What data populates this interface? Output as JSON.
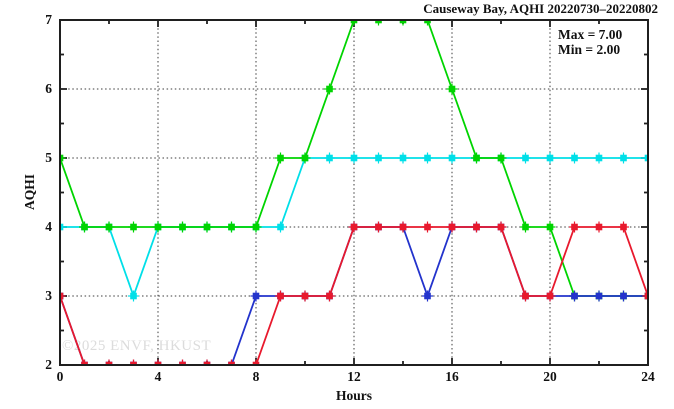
{
  "figure": {
    "watermark": "©2025 ENVF, HKUST"
  },
  "chart_data": {
    "type": "line",
    "title": "Causeway Bay, AQHI 20220730–20220802",
    "xlabel": "Hours",
    "ylabel": "AQHI",
    "xlim": [
      0,
      24
    ],
    "ylim": [
      2,
      7
    ],
    "grid": true,
    "legend_position": "none",
    "annotation_position": "top-right",
    "annotations": {
      "max": "Max = 7.00",
      "min": "Min = 2.00"
    },
    "stats": {
      "max": 7.0,
      "min": 2.0
    },
    "x_gridlines": [
      4,
      8,
      12,
      16,
      20
    ],
    "y_gridlines": [
      3,
      4,
      5,
      6
    ],
    "x_major_ticks": [
      0,
      4,
      8,
      12,
      16,
      20,
      24
    ],
    "x_minor_ticks": [
      2,
      6,
      10,
      14,
      18,
      22
    ],
    "y_major_ticks": [
      2,
      3,
      4,
      5,
      6,
      7
    ],
    "y_minor_ticks": [
      2.5,
      3.5,
      4.5,
      5.5,
      6.5
    ],
    "x": [
      0,
      1,
      2,
      3,
      4,
      5,
      6,
      7,
      8,
      9,
      10,
      11,
      12,
      13,
      14,
      15,
      16,
      17,
      18,
      19,
      20,
      21,
      22,
      23,
      24
    ],
    "series": [
      {
        "name": "cyan",
        "color": "#00dfe8",
        "values": [
          4,
          4,
          4,
          3,
          4,
          4,
          4,
          4,
          4,
          4,
          5,
          5,
          5,
          5,
          5,
          5,
          5,
          5,
          5,
          5,
          5,
          5,
          5,
          5,
          5
        ]
      },
      {
        "name": "green",
        "color": "#00d400",
        "values": [
          5,
          4,
          4,
          4,
          4,
          4,
          4,
          4,
          4,
          5,
          5,
          6,
          7,
          7,
          7,
          7,
          6,
          5,
          5,
          4,
          4,
          3,
          3,
          3,
          3
        ]
      },
      {
        "name": "blue",
        "color": "#2333cc",
        "values": [
          3,
          2,
          2,
          2,
          2,
          2,
          2,
          2,
          3,
          3,
          3,
          3,
          4,
          4,
          4,
          3,
          4,
          4,
          4,
          3,
          3,
          3,
          3,
          3,
          3
        ]
      },
      {
        "name": "red",
        "color": "#e8192d",
        "values": [
          3,
          2,
          2,
          2,
          2,
          2,
          2,
          2,
          2,
          3,
          3,
          3,
          4,
          4,
          4,
          4,
          4,
          4,
          4,
          3,
          3,
          4,
          4,
          4,
          3
        ]
      }
    ]
  }
}
